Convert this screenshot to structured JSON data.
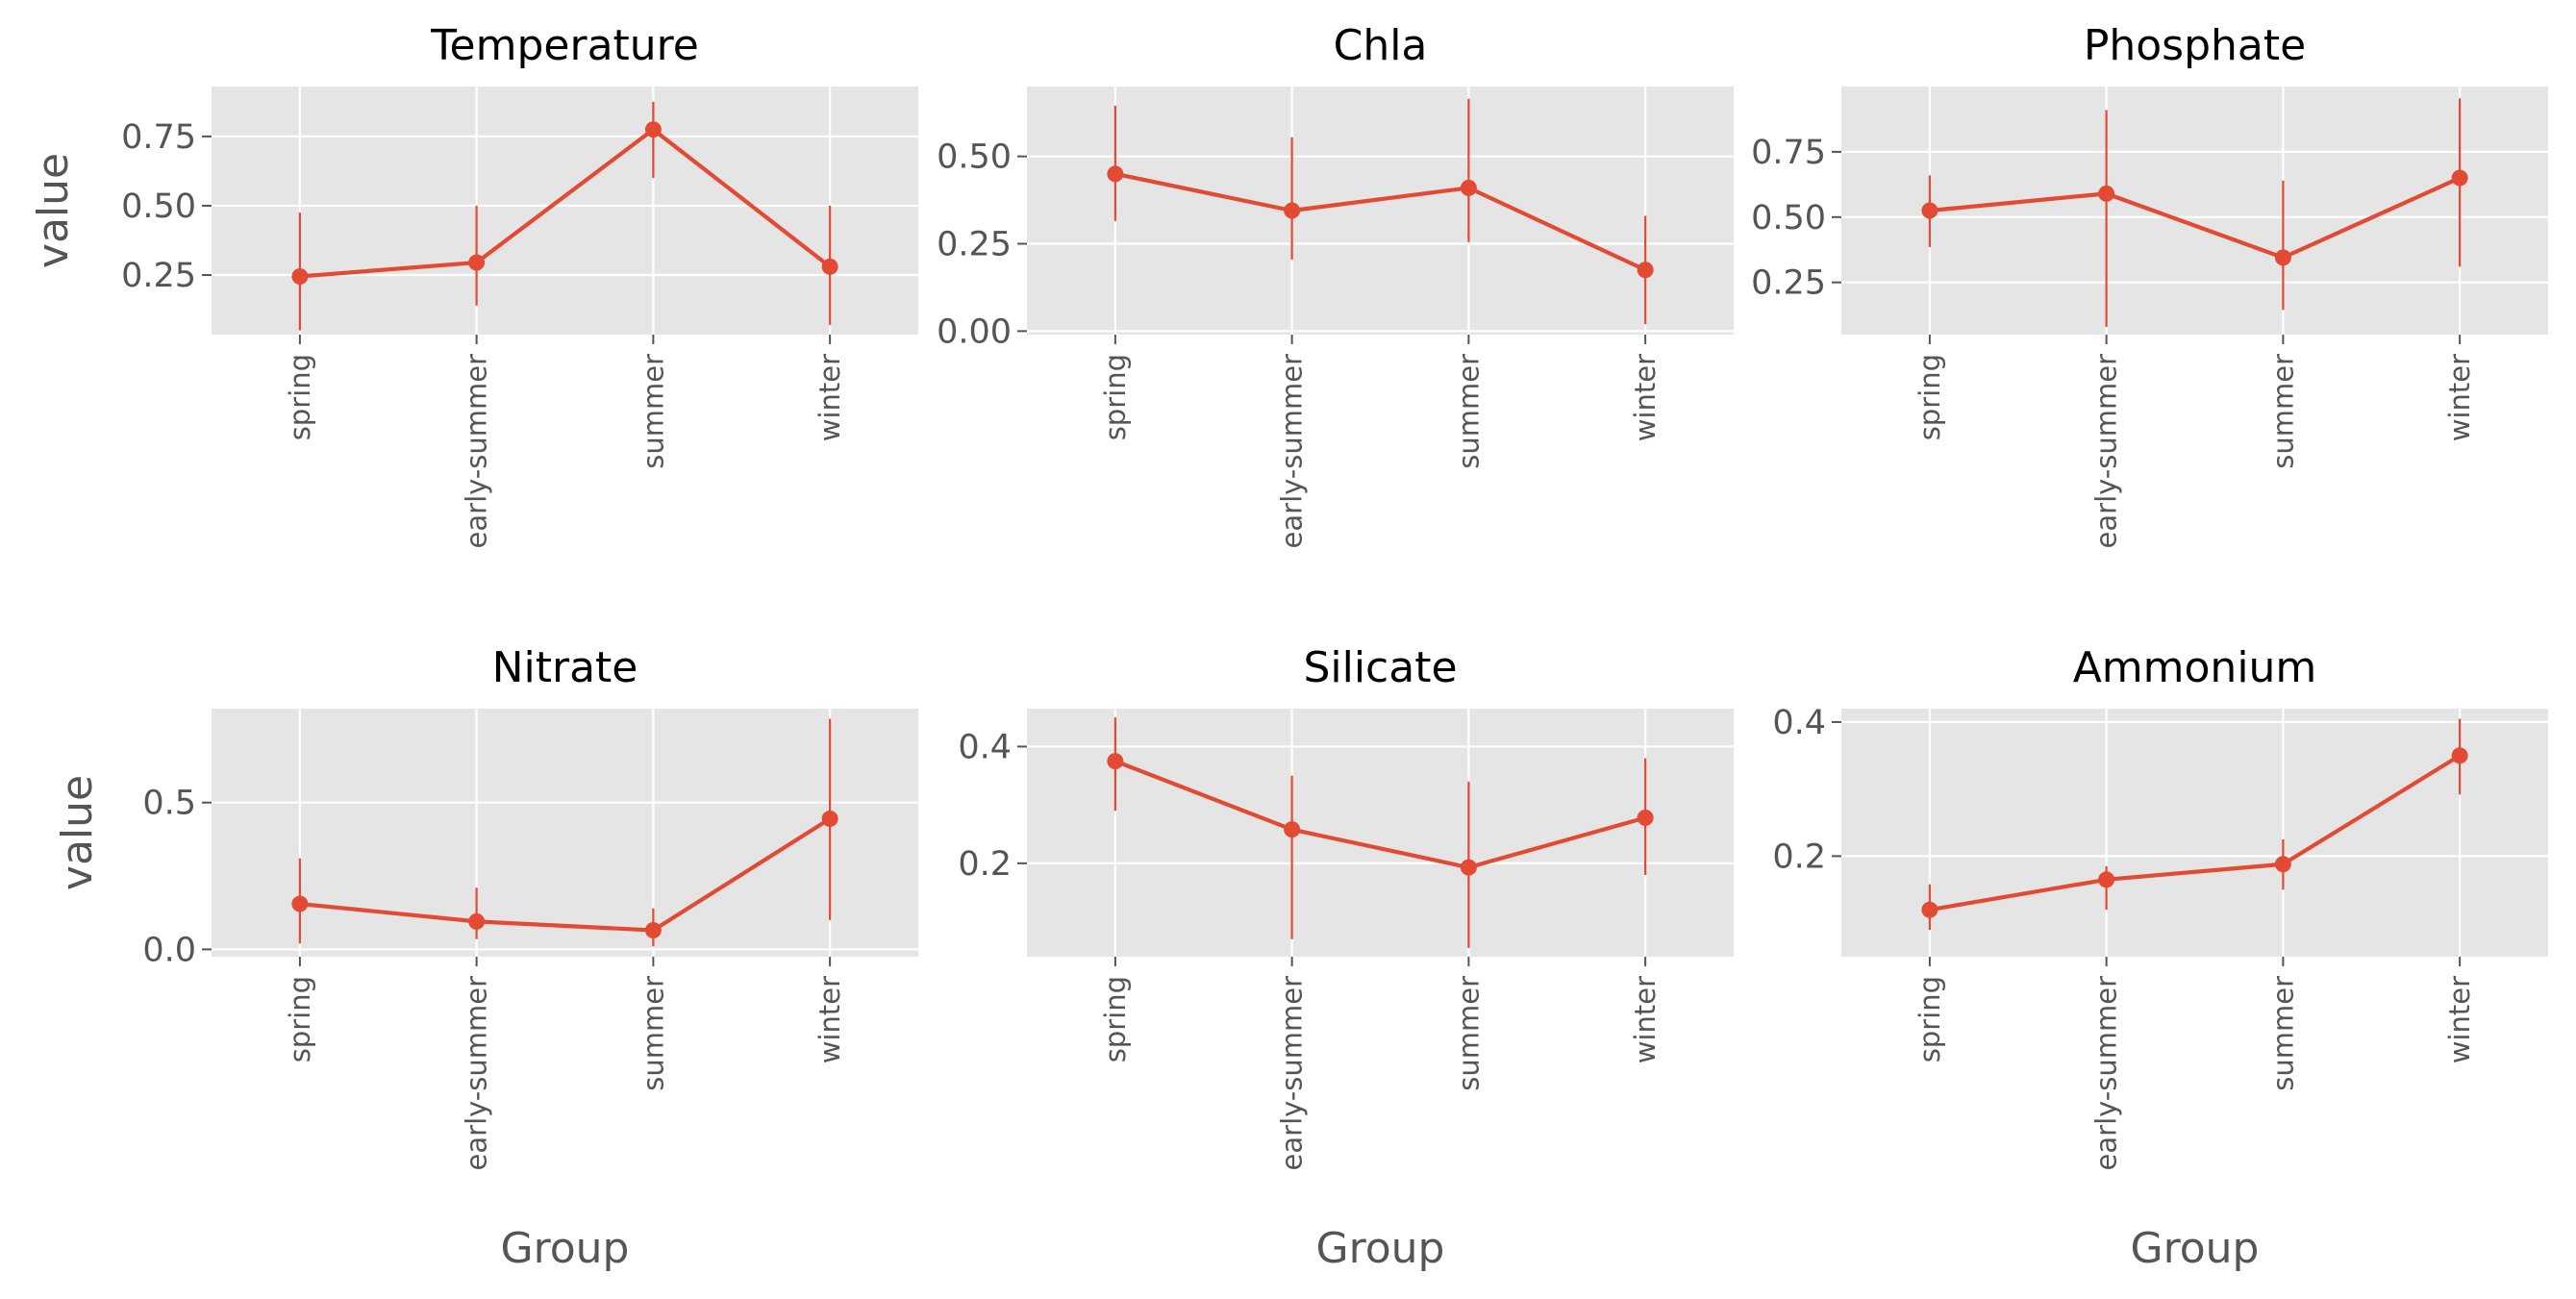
{
  "figure": {
    "colors": {
      "series": "#e24a33",
      "panel_background": "#e5e5e5",
      "grid": "#ffffff",
      "tick_label": "#555555"
    }
  },
  "chart_data": [
    {
      "type": "line",
      "title": "Temperature",
      "xlabel": "",
      "ylabel": "value",
      "categories": [
        "spring",
        "early-summer",
        "summer",
        "winter"
      ],
      "yticks": [
        0.25,
        0.5,
        0.75
      ],
      "ytick_labels": [
        "0.25",
        "0.50",
        "0.75"
      ],
      "ylim": [
        0.035,
        0.93
      ],
      "grid": true,
      "series": [
        {
          "values": [
            0.245,
            0.295,
            0.775,
            0.28
          ],
          "err_low": [
            0.05,
            0.14,
            0.6,
            0.07
          ],
          "err_high": [
            0.475,
            0.5,
            0.875,
            0.5
          ]
        }
      ]
    },
    {
      "type": "line",
      "title": "Chla",
      "xlabel": "",
      "ylabel": "",
      "categories": [
        "spring",
        "early-summer",
        "summer",
        "winter"
      ],
      "yticks": [
        0.0,
        0.25,
        0.5
      ],
      "ytick_labels": [
        "0.00",
        "0.25",
        "0.50"
      ],
      "ylim": [
        -0.01,
        0.7
      ],
      "grid": true,
      "series": [
        {
          "values": [
            0.45,
            0.345,
            0.41,
            0.175
          ],
          "err_low": [
            0.315,
            0.205,
            0.255,
            0.02
          ],
          "err_high": [
            0.645,
            0.555,
            0.665,
            0.33
          ]
        }
      ]
    },
    {
      "type": "line",
      "title": "Phosphate",
      "xlabel": "",
      "ylabel": "",
      "categories": [
        "spring",
        "early-summer",
        "summer",
        "winter"
      ],
      "yticks": [
        0.25,
        0.5,
        0.75
      ],
      "ytick_labels": [
        "0.25",
        "0.50",
        "0.75"
      ],
      "ylim": [
        0.05,
        1.0
      ],
      "grid": true,
      "series": [
        {
          "values": [
            0.525,
            0.59,
            0.345,
            0.65
          ],
          "err_low": [
            0.385,
            0.08,
            0.145,
            0.31
          ],
          "err_high": [
            0.66,
            0.91,
            0.64,
            0.955
          ]
        }
      ]
    },
    {
      "type": "line",
      "title": "Nitrate",
      "xlabel": "Group",
      "ylabel": "value",
      "categories": [
        "spring",
        "early-summer",
        "summer",
        "winter"
      ],
      "yticks": [
        0.0,
        0.5
      ],
      "ytick_labels": [
        "0.0",
        "0.5"
      ],
      "ylim": [
        -0.025,
        0.82
      ],
      "grid": true,
      "series": [
        {
          "values": [
            0.155,
            0.095,
            0.065,
            0.445
          ],
          "err_low": [
            0.02,
            0.035,
            0.01,
            0.1
          ],
          "err_high": [
            0.31,
            0.21,
            0.14,
            0.785
          ]
        }
      ]
    },
    {
      "type": "line",
      "title": "Silicate",
      "xlabel": "Group",
      "ylabel": "",
      "categories": [
        "spring",
        "early-summer",
        "summer",
        "winter"
      ],
      "yticks": [
        0.2,
        0.4
      ],
      "ytick_labels": [
        "0.2",
        "0.4"
      ],
      "ylim": [
        0.04,
        0.465
      ],
      "grid": true,
      "series": [
        {
          "values": [
            0.375,
            0.258,
            0.193,
            0.278
          ],
          "err_low": [
            0.29,
            0.07,
            0.055,
            0.18
          ],
          "err_high": [
            0.45,
            0.35,
            0.34,
            0.38
          ]
        }
      ]
    },
    {
      "type": "line",
      "title": "Ammonium",
      "xlabel": "Group",
      "ylabel": "",
      "categories": [
        "spring",
        "early-summer",
        "summer",
        "winter"
      ],
      "yticks": [
        0.2,
        0.4
      ],
      "ytick_labels": [
        "0.2",
        "0.4"
      ],
      "ylim": [
        0.05,
        0.42
      ],
      "grid": true,
      "series": [
        {
          "values": [
            0.12,
            0.165,
            0.188,
            0.35
          ],
          "err_low": [
            0.09,
            0.12,
            0.15,
            0.292
          ],
          "err_high": [
            0.158,
            0.185,
            0.225,
            0.405
          ]
        }
      ]
    }
  ]
}
